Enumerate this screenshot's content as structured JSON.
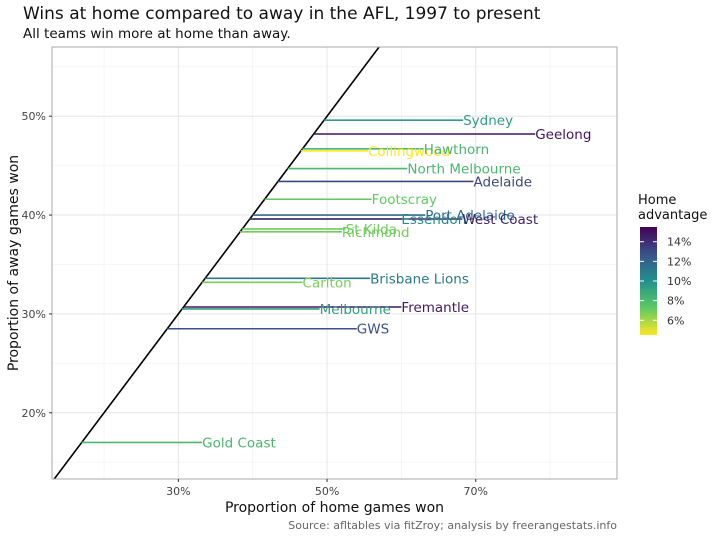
{
  "title": "Wins at home compared to away in the AFL, 1997 to present",
  "subtitle": "All teams win more at home than away.",
  "caption": "Source: afltables via fitZroy; analysis by freerangestats.info",
  "colors": {
    "scale_low": "#fde725",
    "scale_mid": "#21918c",
    "scale_high": "#440154",
    "diagonal": "#000000",
    "grid": "#e6e6e6",
    "panel_border": "#aaaaaa"
  },
  "chart_data": {
    "type": "dumbbell-segment",
    "xlabel": "Proportion of home games won",
    "ylabel": "Proportion of away games won",
    "x_ticks": [
      "30%",
      "50%",
      "70%"
    ],
    "y_ticks": [
      "20%",
      "30%",
      "40%",
      "50%"
    ],
    "xlim": [
      0.13,
      0.89
    ],
    "ylim": [
      0.133,
      0.57
    ],
    "grid": true,
    "reference_line": "y = x",
    "legend": {
      "title_line1": "Home",
      "title_line2": "advantage",
      "position": "right",
      "range": [
        0.045,
        0.155
      ],
      "ticks": [
        "14%",
        "12%",
        "10%",
        "8%",
        "6%"
      ]
    },
    "teams": [
      {
        "name": "Sydney",
        "away": 0.496,
        "home": 0.683,
        "advantage": 0.094
      },
      {
        "name": "Geelong",
        "away": 0.482,
        "home": 0.78,
        "advantage": 0.149
      },
      {
        "name": "Collingwood",
        "away": 0.465,
        "home": 0.555,
        "advantage": 0.045
      },
      {
        "name": "Hawthorn",
        "away": 0.467,
        "home": 0.63,
        "advantage": 0.082
      },
      {
        "name": "North Melbourne",
        "away": 0.447,
        "home": 0.608,
        "advantage": 0.081
      },
      {
        "name": "Adelaide",
        "away": 0.434,
        "home": 0.697,
        "advantage": 0.131
      },
      {
        "name": "Footscray",
        "away": 0.416,
        "home": 0.56,
        "advantage": 0.072
      },
      {
        "name": "Port Adelaide",
        "away": 0.4,
        "home": 0.632,
        "advantage": 0.116
      },
      {
        "name": "Essendon",
        "away": 0.396,
        "home": 0.6,
        "advantage": 0.102
      },
      {
        "name": "West Coast",
        "away": 0.396,
        "home": 0.682,
        "advantage": 0.143
      },
      {
        "name": "St Kilda",
        "away": 0.386,
        "home": 0.525,
        "advantage": 0.07
      },
      {
        "name": "Richmond",
        "away": 0.383,
        "home": 0.52,
        "advantage": 0.069
      },
      {
        "name": "Brisbane Lions",
        "away": 0.336,
        "home": 0.558,
        "advantage": 0.111
      },
      {
        "name": "Carlton",
        "away": 0.332,
        "home": 0.467,
        "advantage": 0.068
      },
      {
        "name": "Fremantle",
        "away": 0.307,
        "home": 0.6,
        "advantage": 0.147
      },
      {
        "name": "Melbourne",
        "away": 0.305,
        "home": 0.49,
        "advantage": 0.093
      },
      {
        "name": "GWS",
        "away": 0.285,
        "home": 0.54,
        "advantage": 0.128
      },
      {
        "name": "Gold Coast",
        "away": 0.17,
        "home": 0.332,
        "advantage": 0.081
      }
    ]
  }
}
